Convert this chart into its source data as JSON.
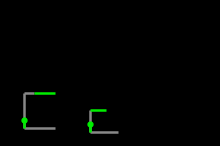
{
  "background_color": "#000000",
  "figsize": [
    2.2,
    1.46
  ],
  "dpi": 100,
  "structure1": {
    "gray_lines": [
      [
        [
          24,
          93
        ],
        [
          24,
          128
        ]
      ],
      [
        [
          24,
          128
        ],
        [
          55,
          128
        ]
      ],
      [
        [
          24,
          93
        ],
        [
          34,
          93
        ]
      ]
    ],
    "green_lines": [
      [
        [
          34,
          93
        ],
        [
          55,
          93
        ]
      ],
      [
        [
          24,
          128
        ],
        [
          24,
          120
        ]
      ]
    ],
    "green_dot": [
      24,
      120
    ]
  },
  "structure2": {
    "gray_lines": [
      [
        [
          90,
          110
        ],
        [
          90,
          132
        ]
      ],
      [
        [
          90,
          132
        ],
        [
          118,
          132
        ]
      ]
    ],
    "green_lines": [
      [
        [
          90,
          110
        ],
        [
          106,
          110
        ]
      ],
      [
        [
          90,
          132
        ],
        [
          90,
          124
        ]
      ]
    ],
    "green_dot": [
      90,
      124
    ]
  }
}
